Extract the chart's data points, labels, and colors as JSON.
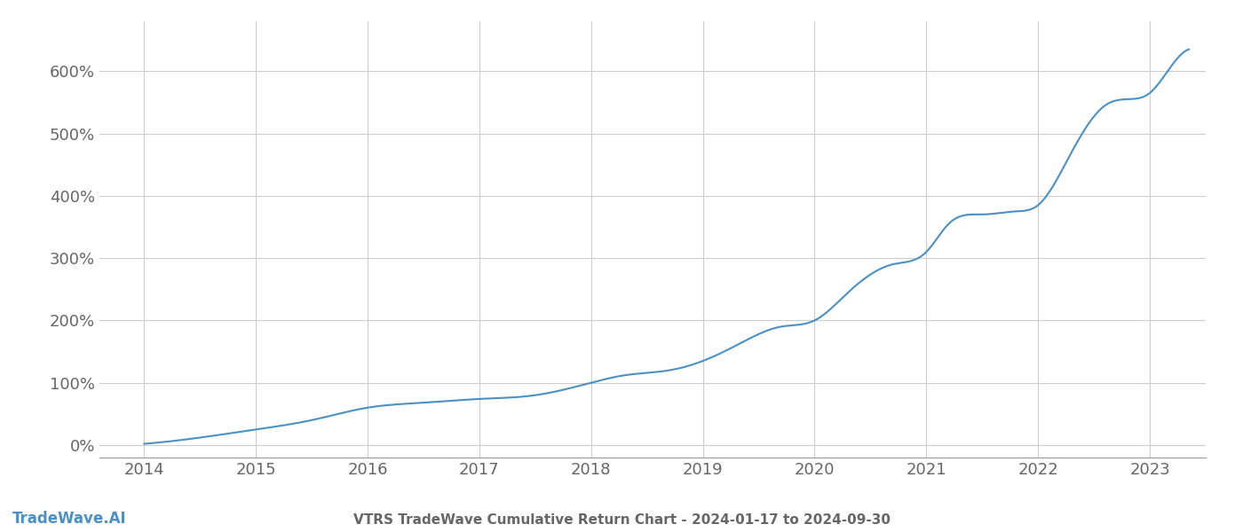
{
  "title": "VTRS TradeWave Cumulative Return Chart - 2024-01-17 to 2024-09-30",
  "watermark": "TradeWave.AI",
  "line_color": "#4a90c4",
  "background_color": "#ffffff",
  "grid_color": "#cccccc",
  "text_color": "#666666",
  "x_years": [
    2014,
    2015,
    2016,
    2017,
    2018,
    2019,
    2020,
    2021,
    2022,
    2023
  ],
  "y_ticks": [
    0,
    100,
    200,
    300,
    400,
    500,
    600
  ],
  "xlim": [
    2013.6,
    2023.5
  ],
  "ylim": [
    -20,
    680
  ],
  "key_x": [
    2014.0,
    2014.5,
    2015.0,
    2015.5,
    2016.0,
    2016.5,
    2017.0,
    2017.5,
    2018.0,
    2018.3,
    2018.7,
    2019.0,
    2019.3,
    2019.7,
    2020.0,
    2020.3,
    2020.7,
    2021.0,
    2021.2,
    2021.5,
    2021.8,
    2022.0,
    2022.3,
    2022.6,
    2022.8,
    2023.0,
    2023.2,
    2023.35
  ],
  "key_y": [
    2,
    12,
    25,
    40,
    60,
    68,
    74,
    80,
    100,
    112,
    120,
    135,
    160,
    190,
    200,
    245,
    290,
    310,
    355,
    370,
    375,
    385,
    470,
    545,
    555,
    565,
    610,
    635
  ],
  "title_fontsize": 11,
  "tick_fontsize": 13,
  "watermark_fontsize": 12,
  "line_width": 1.5
}
